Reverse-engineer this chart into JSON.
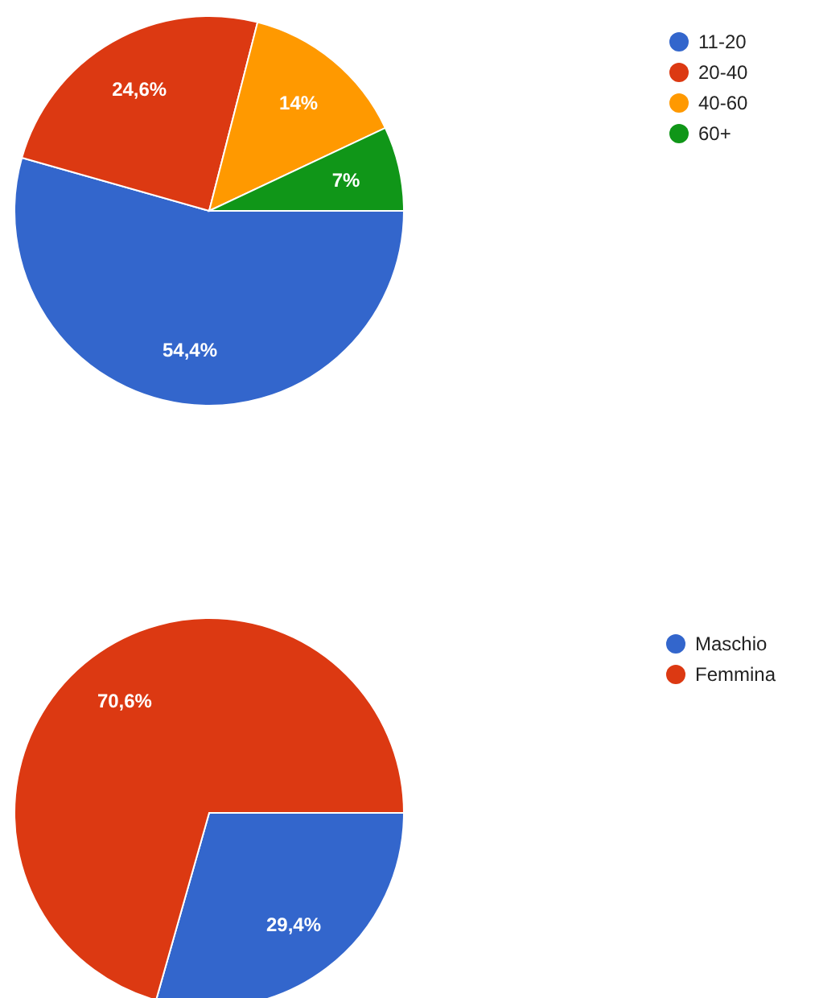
{
  "chart_data": [
    {
      "type": "pie",
      "categories": [
        "11-20",
        "20-40",
        "40-60",
        "60+"
      ],
      "values": [
        54.4,
        24.6,
        14,
        7
      ],
      "colors": [
        "#3366cc",
        "#dc3912",
        "#ff9900",
        "#109618"
      ],
      "value_labels": [
        "54,4%",
        "24,6%",
        "14%",
        "7%"
      ],
      "legend": "top right"
    },
    {
      "type": "pie",
      "categories": [
        "Maschio",
        "Femmina"
      ],
      "values": [
        29.4,
        70.6
      ],
      "colors": [
        "#3366cc",
        "#dc3912"
      ],
      "value_labels": [
        "29,4%",
        "70,6%"
      ],
      "legend": "top right"
    }
  ]
}
